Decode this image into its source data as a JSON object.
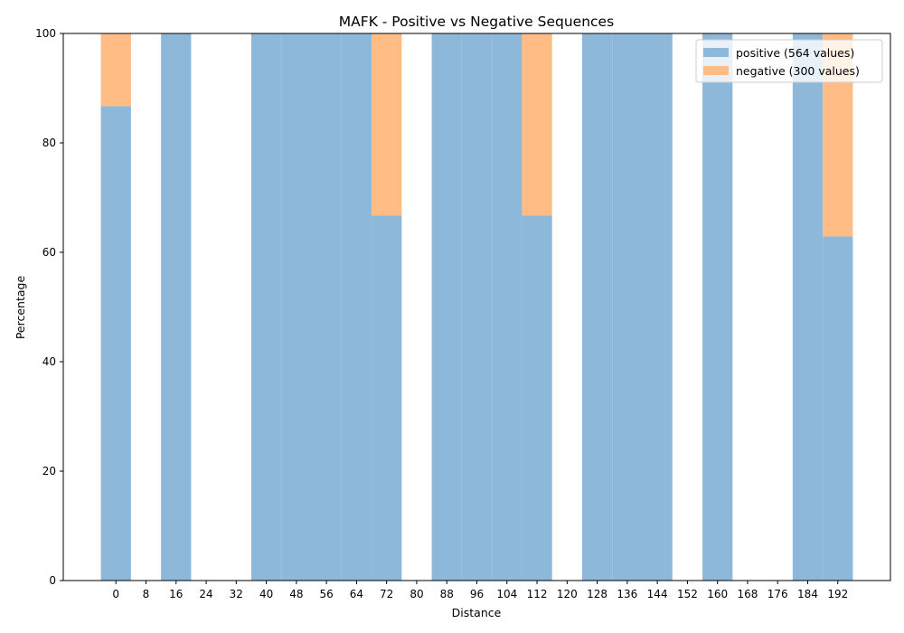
{
  "chart_data": {
    "type": "bar",
    "stacked": true,
    "title": "MAFK - Positive vs Negative Sequences",
    "xlabel": "Distance",
    "ylabel": "Percentage",
    "ylim": [
      0,
      100
    ],
    "yticks": [
      0,
      20,
      40,
      60,
      80,
      100
    ],
    "xlim": [
      -14,
      206
    ],
    "bar_width": 8,
    "xticks": [
      0,
      8,
      16,
      24,
      32,
      40,
      48,
      56,
      64,
      72,
      80,
      88,
      96,
      104,
      112,
      120,
      128,
      136,
      144,
      152,
      160,
      168,
      176,
      184,
      192
    ],
    "legend": "top-right",
    "grid": false,
    "series": [
      {
        "name": "positive (564 values)",
        "color": "#8db8d9",
        "values": [
          86.7,
          0,
          100,
          0,
          0,
          100,
          100,
          100,
          100,
          66.7,
          0,
          100,
          100,
          100,
          66.7,
          0,
          100,
          100,
          100,
          0,
          100,
          0,
          0,
          100,
          62.9
        ]
      },
      {
        "name": "negative (300 values)",
        "color": "#ffbc85",
        "values": [
          13.3,
          0,
          0,
          0,
          0,
          0,
          0,
          0,
          0,
          33.3,
          0,
          0,
          0,
          0,
          33.3,
          0,
          0,
          0,
          0,
          0,
          0,
          0,
          0,
          0,
          37.1
        ]
      }
    ]
  }
}
